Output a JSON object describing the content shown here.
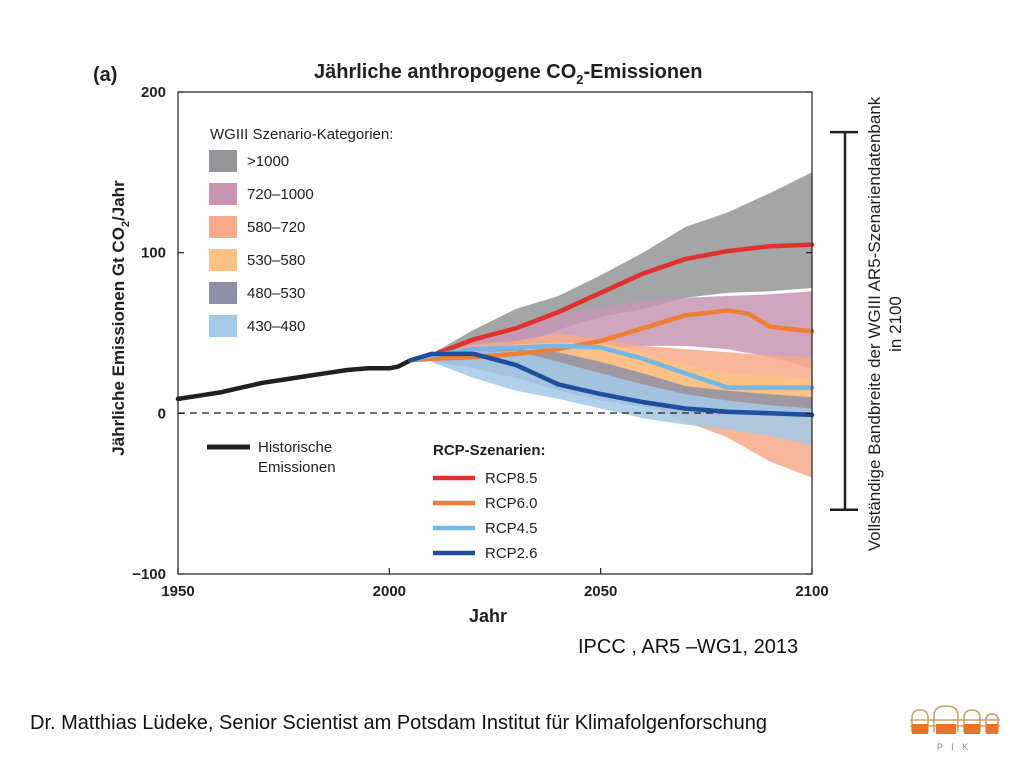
{
  "chart_data": {
    "type": "area",
    "panel_label": "(a)",
    "title": "Jährliche anthropogene CO",
    "title_sub": "2",
    "title_suffix": "-Emissionen",
    "ylabel_main": "Jährliche Emissionen Gt CO",
    "ylabel_sub": "2",
    "ylabel_suffix": "/Jahr",
    "xlabel": "Jahr",
    "xlim": [
      1950,
      2100
    ],
    "ylim": [
      -100,
      200
    ],
    "xticks": [
      1950,
      2000,
      2050,
      2100
    ],
    "xtick_labels": [
      "1950",
      "2000",
      "2050",
      "2100"
    ],
    "yticks": [
      -100,
      0,
      100,
      200
    ],
    "ytick_labels": [
      "−100",
      "0",
      "100",
      "200"
    ],
    "zero_line": "dashed",
    "legend_scenarios_title": "WGIII Szenario-Kategorien:",
    "legend_rcp_title": "RCP-Szenarien:",
    "right_bracket_label_1": "Vollständige Bandbreite der WGIII AR5-Szenariendatenbank",
    "right_bracket_label_2": "in 2100",
    "right_bracket_range": [
      -60,
      175
    ],
    "bands": [
      {
        "name": ">1000",
        "color": "#939598",
        "x": [
          2010,
          2020,
          2030,
          2040,
          2050,
          2060,
          2070,
          2080,
          2090,
          2100
        ],
        "upper": [
          37,
          52,
          65,
          73,
          86,
          100,
          116,
          125,
          137,
          150
        ],
        "lower": [
          33,
          36,
          41,
          52,
          60,
          65,
          72,
          75,
          76,
          78
        ]
      },
      {
        "name": "720–1000",
        "color": "#c896b4",
        "x": [
          2010,
          2020,
          2030,
          2040,
          2050,
          2060,
          2070,
          2080,
          2090,
          2100
        ],
        "upper": [
          37,
          45,
          55,
          62,
          66,
          70,
          72,
          73,
          74,
          76
        ],
        "lower": [
          33,
          35,
          36,
          38,
          40,
          42,
          42,
          40,
          35,
          28
        ]
      },
      {
        "name": "580–720",
        "color": "#f7a98a",
        "x": [
          2010,
          2020,
          2030,
          2040,
          2050,
          2060,
          2070,
          2080,
          2090,
          2100
        ],
        "upper": [
          36,
          43,
          45,
          50,
          46,
          42,
          40,
          38,
          36,
          35
        ],
        "lower": [
          33,
          32,
          30,
          24,
          17,
          6,
          -5,
          -15,
          -30,
          -40
        ]
      },
      {
        "name": "530–580",
        "color": "#fdc384",
        "x": [
          2010,
          2020,
          2030,
          2040,
          2050,
          2060,
          2070,
          2080,
          2090,
          2100
        ],
        "upper": [
          35,
          40,
          43,
          44,
          44,
          38,
          30,
          25,
          23,
          22
        ],
        "lower": [
          32,
          30,
          27,
          20,
          12,
          6,
          2,
          0,
          -2,
          -3
        ]
      },
      {
        "name": "480–530",
        "color": "#8e90a8",
        "x": [
          2010,
          2020,
          2030,
          2040,
          2050,
          2060,
          2070,
          2080,
          2090,
          2100
        ],
        "upper": [
          35,
          38,
          40,
          38,
          32,
          25,
          17,
          14,
          12,
          10
        ],
        "lower": [
          32,
          28,
          22,
          14,
          8,
          4,
          0,
          -1,
          -2,
          -3
        ]
      },
      {
        "name": "430–480",
        "color": "#a3c9e8",
        "x": [
          2010,
          2020,
          2030,
          2040,
          2050,
          2060,
          2070,
          2080,
          2090,
          2100
        ],
        "upper": [
          35,
          38,
          39,
          32,
          25,
          18,
          12,
          8,
          5,
          3
        ],
        "lower": [
          32,
          22,
          14,
          9,
          3,
          -3,
          -7,
          -10,
          -14,
          -20
        ]
      }
    ],
    "series": [
      {
        "name": "Historische Emissionen",
        "color": "#231f20",
        "x": [
          1950,
          1955,
          1960,
          1965,
          1970,
          1975,
          1980,
          1985,
          1990,
          1995,
          2000,
          2002,
          2005
        ],
        "y": [
          9,
          11,
          13,
          16,
          19,
          21,
          23,
          25,
          27,
          28,
          28,
          29,
          33
        ]
      },
      {
        "name": "RCP8.5",
        "color": "#e2302c",
        "x": [
          2005,
          2010,
          2020,
          2030,
          2040,
          2050,
          2060,
          2070,
          2080,
          2090,
          2100
        ],
        "y": [
          33,
          36,
          46,
          53,
          63,
          75,
          87,
          96,
          101,
          104,
          105
        ]
      },
      {
        "name": "RCP6.0",
        "color": "#ee7f34",
        "x": [
          2005,
          2010,
          2020,
          2030,
          2040,
          2050,
          2060,
          2070,
          2080,
          2085,
          2090,
          2100
        ],
        "y": [
          33,
          34,
          35,
          37,
          40,
          45,
          53,
          61,
          64,
          62,
          54,
          51
        ]
      },
      {
        "name": "RCP4.5",
        "color": "#74b8e6",
        "x": [
          2005,
          2010,
          2020,
          2030,
          2040,
          2050,
          2060,
          2070,
          2080,
          2090,
          2100
        ],
        "y": [
          33,
          36,
          40,
          41,
          42,
          41,
          34,
          25,
          16,
          16,
          16
        ]
      },
      {
        "name": "RCP2.6",
        "color": "#1f4e9d",
        "x": [
          2005,
          2010,
          2020,
          2030,
          2040,
          2050,
          2060,
          2070,
          2080,
          2090,
          2100
        ],
        "y": [
          33,
          37,
          37,
          30,
          18,
          12,
          7,
          3,
          1,
          0,
          -1
        ]
      }
    ],
    "legend_historic": "Historische Emissionen"
  },
  "citation": "IPCC , AR5 –WG1, 2013",
  "footer": "Dr. Matthias Lüdeke, Senior Scientist am Potsdam Institut für Klimafolgenforschung",
  "logo_text": "P I K"
}
